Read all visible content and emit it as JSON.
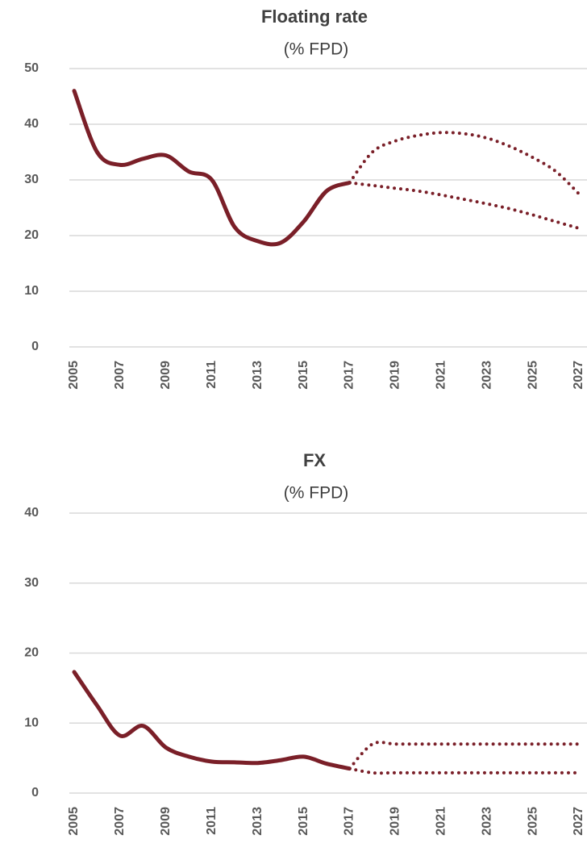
{
  "chart_data": [
    {
      "type": "line",
      "title": "Floating rate",
      "subtitle": "(% FPD)",
      "x": [
        2005,
        2006,
        2007,
        2008,
        2009,
        2010,
        2011,
        2012,
        2013,
        2014,
        2015,
        2016,
        2017,
        2018,
        2019,
        2020,
        2021,
        2022,
        2023,
        2024,
        2025,
        2026,
        2027
      ],
      "series": [
        {
          "color": "#7a1f28",
          "style": "solid",
          "values": [
            46,
            35,
            32.7,
            33.8,
            34.4,
            31.5,
            30,
            21.5,
            19,
            18.7,
            22.5,
            28,
            29.5,
            null,
            null,
            null,
            null,
            null,
            null,
            null,
            null,
            null,
            null
          ]
        },
        {
          "color": "#7a1f28",
          "style": "dotted",
          "values": [
            null,
            null,
            null,
            null,
            null,
            null,
            null,
            null,
            null,
            null,
            null,
            null,
            29.5,
            35,
            37,
            38,
            38.5,
            38.3,
            37.5,
            36,
            34,
            31.5,
            27.5
          ]
        },
        {
          "color": "#7a1f28",
          "style": "dotted",
          "values": [
            null,
            null,
            null,
            null,
            null,
            null,
            null,
            null,
            null,
            null,
            null,
            null,
            29.5,
            29,
            28.5,
            28,
            27.3,
            26.5,
            25.7,
            24.8,
            23.7,
            22.5,
            21.3
          ]
        }
      ],
      "xlim": [
        2005,
        2027
      ],
      "xticks": [
        2005,
        2007,
        2009,
        2011,
        2013,
        2015,
        2017,
        2019,
        2021,
        2023,
        2025,
        2027
      ],
      "ylim": [
        0,
        50
      ],
      "yticks": [
        0,
        10,
        20,
        30,
        40,
        50
      ],
      "grid": true
    },
    {
      "type": "line",
      "title": "FX",
      "subtitle": "(% FPD)",
      "x": [
        2005,
        2006,
        2007,
        2008,
        2009,
        2010,
        2011,
        2012,
        2013,
        2014,
        2015,
        2016,
        2017,
        2018,
        2019,
        2020,
        2021,
        2022,
        2023,
        2024,
        2025,
        2026,
        2027
      ],
      "series": [
        {
          "color": "#7a1f28",
          "style": "solid",
          "values": [
            17.3,
            12.5,
            8.2,
            9.6,
            6.5,
            5.2,
            4.5,
            4.4,
            4.3,
            4.7,
            5.2,
            4.2,
            3.5,
            null,
            null,
            null,
            null,
            null,
            null,
            null,
            null,
            null,
            null
          ]
        },
        {
          "color": "#7a1f28",
          "style": "dotted",
          "values": [
            null,
            null,
            null,
            null,
            null,
            null,
            null,
            null,
            null,
            null,
            null,
            null,
            3.5,
            7,
            7,
            7,
            7,
            7,
            7,
            7,
            7,
            7,
            7
          ]
        },
        {
          "color": "#7a1f28",
          "style": "dotted",
          "values": [
            null,
            null,
            null,
            null,
            null,
            null,
            null,
            null,
            null,
            null,
            null,
            null,
            3.5,
            2.9,
            2.9,
            2.9,
            2.9,
            2.9,
            2.9,
            2.9,
            2.9,
            2.9,
            2.9
          ]
        }
      ],
      "xlim": [
        2005,
        2027
      ],
      "xticks": [
        2005,
        2007,
        2009,
        2011,
        2013,
        2015,
        2017,
        2019,
        2021,
        2023,
        2025,
        2027
      ],
      "ylim": [
        0,
        40
      ],
      "yticks": [
        0,
        10,
        20,
        30,
        40
      ],
      "grid": true
    }
  ]
}
